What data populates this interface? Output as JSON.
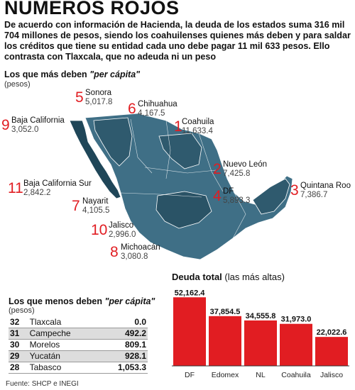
{
  "title": "NÚMEROS ROJOS",
  "intro": "De acuerdo con información de Hacienda, la deuda de los estados suma  316 mil 704 millones de pesos, siendo los coahuilenses quienes más deben y para saldar los créditos que tiene su entidad cada uno debe pagar 11 mil 633 pesos.  Ello contrasta con Tlaxcala, que no adeuda ni un peso",
  "top_section": {
    "title": "Los que más deben",
    "title_em": "\"per cápita\"",
    "unit": "(pesos)"
  },
  "top_states": [
    {
      "rank": "1",
      "name": "Coahuila",
      "value": "11,633.4"
    },
    {
      "rank": "2",
      "name": "Nuevo León",
      "value": "7,425.8"
    },
    {
      "rank": "3",
      "name": "Quintana Roo",
      "value": "7,386.7"
    },
    {
      "rank": "4",
      "name": "DF",
      "value": "5,893.3"
    },
    {
      "rank": "5",
      "name": "Sonora",
      "value": "5,017.8"
    },
    {
      "rank": "6",
      "name": "Chihuahua",
      "value": "4,167.5"
    },
    {
      "rank": "7",
      "name": "Nayarit",
      "value": "4,105.5"
    },
    {
      "rank": "8",
      "name": "Michoacán",
      "value": "3,080.8"
    },
    {
      "rank": "9",
      "name": "Baja California",
      "value": "3,052.0"
    },
    {
      "rank": "10",
      "name": "Jalisco",
      "value": "2,996.0"
    },
    {
      "rank": "11",
      "name": "Baja California Sur",
      "value": "2,842.2"
    }
  ],
  "bottom_section": {
    "title": "Los que menos deben",
    "title_em": "\"per cápita\"",
    "unit": "(pesos)"
  },
  "bottom_states": [
    {
      "rank": "32",
      "name": "Tlaxcala",
      "value": "0.0"
    },
    {
      "rank": "31",
      "name": "Campeche",
      "value": "492.2"
    },
    {
      "rank": "30",
      "name": "Morelos",
      "value": "809.1"
    },
    {
      "rank": "29",
      "name": "Yucatán",
      "value": "928.1"
    },
    {
      "rank": "28",
      "name": "Tabasco",
      "value": "1,053.3"
    }
  ],
  "source": "Fuente: SHCP e INEGI",
  "colors": {
    "bar": "#e11d22",
    "map": "#3f6f86",
    "map_highlight": "#1f4658",
    "rank": "#e11d22"
  },
  "chart_data": {
    "type": "bar",
    "title": "Deuda total",
    "subtitle": "(las más altas)",
    "categories": [
      "DF",
      "Edomex",
      "NL",
      "Coahuila",
      "Jalisco"
    ],
    "values": [
      52162.4,
      37854.5,
      34555.8,
      31973.0,
      22022.6
    ],
    "value_labels": [
      "52,162.4",
      "37,854.5",
      "34,555.8",
      "31,973.0",
      "22,022.6"
    ],
    "ylim": [
      0,
      55000
    ],
    "grid": false
  }
}
